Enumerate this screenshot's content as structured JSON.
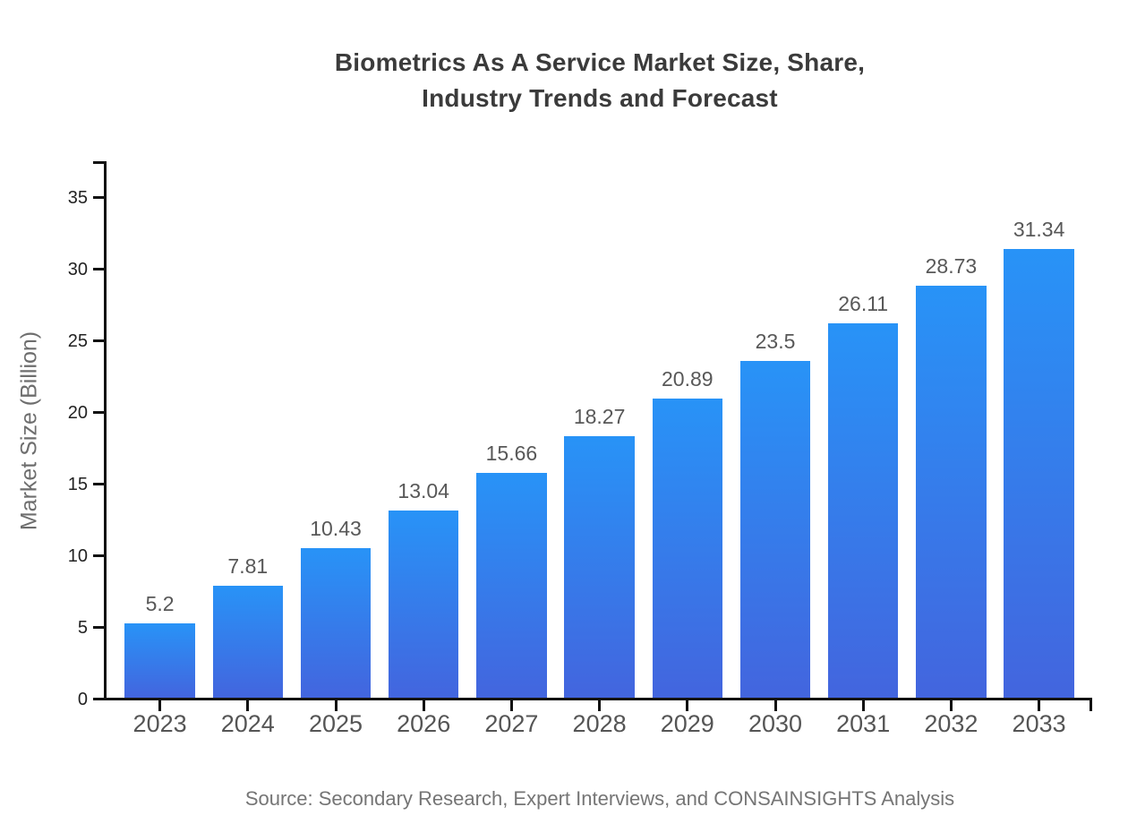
{
  "title": {
    "line1": "Biometrics As A Service Market Size, Share,",
    "line2": "Industry Trends and Forecast"
  },
  "source_note": "Source: Secondary Research, Expert Interviews, and CONSAINSIGHTS Analysis",
  "colors": {
    "background": "#ffffff",
    "bar_top": "#2893f7",
    "bar_bottom": "#4365de",
    "axis": "#111111",
    "title_text": "#3b3b3b",
    "tick_label": "#222222",
    "category_label": "#555555",
    "value_label": "#585858",
    "axis_title": "#6e6e6e",
    "source_text": "#757575"
  },
  "chart_data": {
    "type": "bar",
    "title": "Biometrics As A Service Market Size, Share, Industry Trends and Forecast",
    "categories": [
      "2023",
      "2024",
      "2025",
      "2026",
      "2027",
      "2028",
      "2029",
      "2030",
      "2031",
      "2032",
      "2033"
    ],
    "values": [
      5.2,
      7.81,
      10.43,
      13.04,
      15.66,
      18.27,
      20.89,
      23.5,
      26.11,
      28.73,
      31.34
    ],
    "value_labels": [
      "5.2",
      "7.81",
      "10.43",
      "13.04",
      "15.66",
      "18.27",
      "20.89",
      "23.5",
      "26.11",
      "28.73",
      "31.34"
    ],
    "xlabel": "",
    "ylabel": "Market Size (Billion)",
    "yticks": [
      0,
      5,
      10,
      15,
      20,
      25,
      30,
      35
    ],
    "ylim": [
      0,
      37.5
    ],
    "grid": false,
    "legend": false,
    "bar_fill": "vertical-gradient"
  }
}
